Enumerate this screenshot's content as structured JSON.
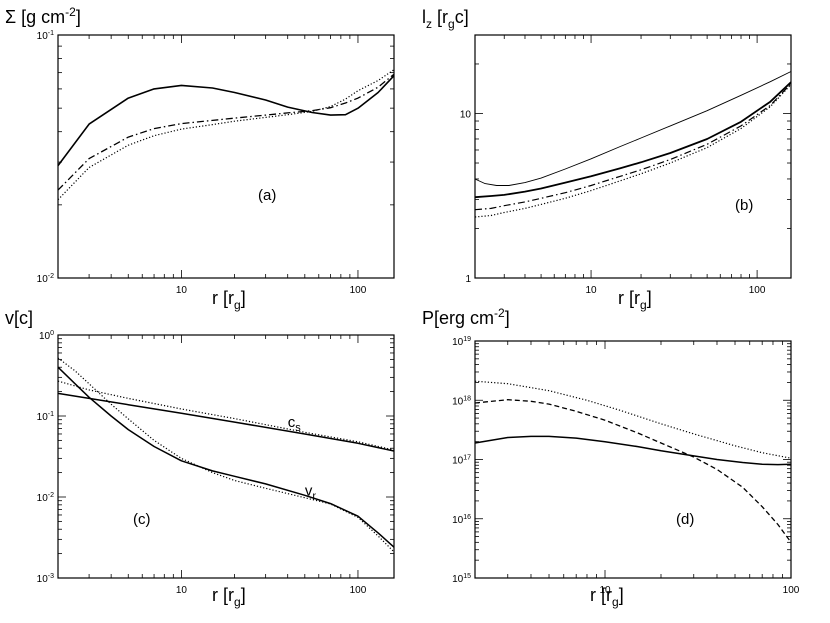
{
  "chart_data": [
    {
      "id": "a",
      "type": "line",
      "ytitle": {
        "main": "Σ [g cm",
        "sup": "-2",
        "tail": "]"
      },
      "xtitle": {
        "main": "r [r",
        "sub": "g",
        "tail": "]"
      },
      "panel_label": "(a)",
      "xscale": "log",
      "yscale": "log",
      "xlim": [
        2,
        160
      ],
      "ylim": [
        0.01,
        0.1
      ],
      "xticks": [
        {
          "v": 10,
          "label": "10"
        },
        {
          "v": 100,
          "label": "100"
        }
      ],
      "yticks": [
        {
          "v": 0.01,
          "label": "10",
          "sup": "-2"
        },
        {
          "v": 0.1,
          "label": "10",
          "sup": "-1"
        }
      ],
      "series": [
        {
          "name": "solid",
          "style": "solid",
          "width": 1.6,
          "x": [
            2,
            3,
            5,
            7,
            10,
            15,
            20,
            30,
            40,
            55,
            70,
            85,
            100,
            130,
            160
          ],
          "y": [
            0.029,
            0.043,
            0.055,
            0.06,
            0.062,
            0.0605,
            0.058,
            0.054,
            0.0505,
            0.048,
            0.0468,
            0.047,
            0.05,
            0.058,
            0.068
          ]
        },
        {
          "name": "dash-dot",
          "style": "dashdot",
          "width": 1.3,
          "x": [
            2,
            3,
            5,
            7,
            10,
            15,
            20,
            30,
            40,
            55,
            70,
            85,
            100,
            130,
            160
          ],
          "y": [
            0.023,
            0.031,
            0.038,
            0.0412,
            0.0432,
            0.0445,
            0.0455,
            0.0468,
            0.0478,
            0.0488,
            0.0502,
            0.0525,
            0.055,
            0.061,
            0.069
          ]
        },
        {
          "name": "dotted",
          "style": "dotted",
          "width": 1.2,
          "x": [
            2,
            3,
            5,
            7,
            10,
            15,
            20,
            30,
            40,
            55,
            70,
            85,
            100,
            130,
            160
          ],
          "y": [
            0.021,
            0.0285,
            0.0352,
            0.0385,
            0.041,
            0.0428,
            0.0442,
            0.0458,
            0.047,
            0.0485,
            0.0508,
            0.0545,
            0.059,
            0.065,
            0.072
          ]
        }
      ]
    },
    {
      "id": "b",
      "type": "line",
      "ytitle": {
        "main": "l",
        "sub": "z",
        "mid": " [r",
        "sub2": "g",
        "tail": "c]"
      },
      "xtitle": {
        "main": "r [r",
        "sub": "g",
        "tail": "]"
      },
      "panel_label": "(b)",
      "xscale": "log",
      "yscale": "log",
      "xlim": [
        2,
        160
      ],
      "ylim": [
        1,
        30
      ],
      "xticks": [
        {
          "v": 10,
          "label": "10"
        },
        {
          "v": 100,
          "label": "100"
        }
      ],
      "yticks": [
        {
          "v": 1,
          "label": "1"
        },
        {
          "v": 10,
          "label": "10"
        }
      ],
      "series": [
        {
          "name": "thin-solid",
          "style": "solid",
          "width": 0.9,
          "x": [
            2,
            2.3,
            2.7,
            3.2,
            4,
            5,
            7,
            10,
            15,
            20,
            30,
            50,
            80,
            120,
            160
          ],
          "y": [
            4.0,
            3.75,
            3.65,
            3.65,
            3.8,
            4.05,
            4.6,
            5.3,
            6.3,
            7.1,
            8.4,
            10.4,
            12.9,
            15.6,
            18.0
          ]
        },
        {
          "name": "thick-solid",
          "style": "solid",
          "width": 1.8,
          "x": [
            2,
            2.5,
            3,
            4,
            5,
            7,
            10,
            15,
            20,
            30,
            50,
            80,
            120,
            160
          ],
          "y": [
            3.1,
            3.15,
            3.2,
            3.35,
            3.5,
            3.8,
            4.15,
            4.65,
            5.05,
            5.75,
            7.0,
            8.9,
            11.8,
            15.5
          ]
        },
        {
          "name": "dash-dot",
          "style": "dashdot",
          "width": 1.2,
          "x": [
            2,
            2.5,
            3,
            4,
            5,
            7,
            10,
            15,
            20,
            30,
            50,
            80,
            120,
            160
          ],
          "y": [
            2.6,
            2.65,
            2.75,
            2.9,
            3.05,
            3.3,
            3.65,
            4.15,
            4.55,
            5.25,
            6.5,
            8.4,
            11.2,
            15.2
          ]
        },
        {
          "name": "dotted",
          "style": "dotted",
          "width": 1.2,
          "x": [
            2,
            2.5,
            3,
            4,
            5,
            7,
            10,
            15,
            20,
            30,
            50,
            80,
            120,
            160
          ],
          "y": [
            2.35,
            2.4,
            2.5,
            2.65,
            2.8,
            3.05,
            3.4,
            3.9,
            4.3,
            5.0,
            6.2,
            8.1,
            11.0,
            15.0
          ]
        }
      ]
    },
    {
      "id": "c",
      "type": "line",
      "ytitle": {
        "main": "v[c]"
      },
      "xtitle": {
        "main": "r [r",
        "sub": "g",
        "tail": "]"
      },
      "panel_label": "(c)",
      "xscale": "log",
      "yscale": "log",
      "xlim": [
        2,
        160
      ],
      "ylim": [
        0.001,
        1
      ],
      "xticks": [
        {
          "v": 10,
          "label": "10"
        },
        {
          "v": 100,
          "label": "100"
        }
      ],
      "yticks": [
        {
          "v": 0.001,
          "label": "10",
          "sup": "-3"
        },
        {
          "v": 0.01,
          "label": "10",
          "sup": "-2"
        },
        {
          "v": 0.1,
          "label": "10",
          "sup": "-1"
        },
        {
          "v": 1,
          "label": "10",
          "sup": "0"
        }
      ],
      "annotations": [
        {
          "text": "c",
          "sub": "s",
          "x": 40,
          "y": 0.073
        },
        {
          "text": "v",
          "sub": "r",
          "x": 50,
          "y": 0.0105
        }
      ],
      "series": [
        {
          "name": "cs-solid",
          "style": "solid",
          "width": 1.5,
          "x": [
            2,
            3,
            5,
            10,
            20,
            50,
            100,
            160
          ],
          "y": [
            0.19,
            0.165,
            0.138,
            0.108,
            0.084,
            0.06,
            0.046,
            0.037
          ]
        },
        {
          "name": "cs-dotted",
          "style": "dotted",
          "width": 1.2,
          "x": [
            2,
            3,
            5,
            10,
            20,
            50,
            100,
            160
          ],
          "y": [
            0.27,
            0.21,
            0.165,
            0.122,
            0.093,
            0.063,
            0.048,
            0.038
          ]
        },
        {
          "name": "vr-solid",
          "style": "solid",
          "width": 1.5,
          "x": [
            2,
            2.5,
            3,
            4,
            5,
            7,
            10,
            15,
            20,
            30,
            50,
            70,
            100,
            130,
            160
          ],
          "y": [
            0.4,
            0.25,
            0.17,
            0.1,
            0.068,
            0.042,
            0.028,
            0.021,
            0.018,
            0.0145,
            0.0105,
            0.0083,
            0.0058,
            0.0036,
            0.0024
          ]
        },
        {
          "name": "vr-dotted",
          "style": "dotted",
          "width": 1.2,
          "x": [
            2,
            2.5,
            3,
            4,
            5,
            7,
            10,
            15,
            20,
            30,
            50,
            70,
            100,
            130,
            160
          ],
          "y": [
            0.52,
            0.36,
            0.25,
            0.14,
            0.092,
            0.05,
            0.03,
            0.02,
            0.016,
            0.0128,
            0.0098,
            0.0082,
            0.0056,
            0.0033,
            0.0021
          ]
        }
      ]
    },
    {
      "id": "d",
      "type": "line",
      "ytitle": {
        "main": "P[erg cm",
        "sup": "-2",
        "tail": "]"
      },
      "xtitle": {
        "main": "r [r",
        "sub": "g",
        "tail": "]"
      },
      "panel_label": "(d)",
      "xscale": "log",
      "yscale": "log",
      "xlim": [
        2,
        100
      ],
      "ylim": [
        1000000000000000.0,
        1e+19
      ],
      "xticks": [
        {
          "v": 10,
          "label": "10"
        },
        {
          "v": 100,
          "label": "100"
        }
      ],
      "yticks": [
        {
          "v": 1000000000000000.0,
          "label": "10",
          "sup": "15"
        },
        {
          "v": 1e+16,
          "label": "10",
          "sup": "16"
        },
        {
          "v": 1e+17,
          "label": "10",
          "sup": "17"
        },
        {
          "v": 1e+18,
          "label": "10",
          "sup": "18"
        },
        {
          "v": 1e+19,
          "label": "10",
          "sup": "19"
        }
      ],
      "series": [
        {
          "name": "dotted-total",
          "style": "dotted",
          "width": 1.2,
          "x": [
            2,
            3,
            5,
            8,
            12,
            20,
            30,
            50,
            70,
            100
          ],
          "y": [
            2.1e+18,
            1.9e+18,
            1.45e+18,
            1e+18,
            6.8e+17,
            4e+17,
            2.7e+17,
            1.7e+17,
            1.3e+17,
            1.05e+17
          ]
        },
        {
          "name": "dashed",
          "style": "dashed",
          "width": 1.3,
          "x": [
            2,
            3,
            4,
            5,
            7,
            10,
            15,
            20,
            30,
            40,
            55,
            70,
            85,
            100
          ],
          "y": [
            9e+17,
            1.02e+18,
            9.6e+17,
            8.6e+17,
            6.5e+17,
            4.6e+17,
            2.8e+17,
            1.9e+17,
            1.1e+17,
            6.8e+16,
            3.4e+16,
            1.6e+16,
            8000000000000000.0,
            4000000000000000.0
          ]
        },
        {
          "name": "solid",
          "style": "solid",
          "width": 1.5,
          "x": [
            2,
            3,
            4,
            5,
            7,
            10,
            15,
            20,
            30,
            40,
            55,
            70,
            85,
            100
          ],
          "y": [
            1.9e+17,
            2.35e+17,
            2.45e+17,
            2.45e+17,
            2.3e+17,
            2e+17,
            1.65e+17,
            1.4e+17,
            1.15e+17,
            1e+17,
            8.9e+16,
            8.3e+16,
            8.2e+16,
            8.3e+16
          ]
        }
      ]
    }
  ]
}
